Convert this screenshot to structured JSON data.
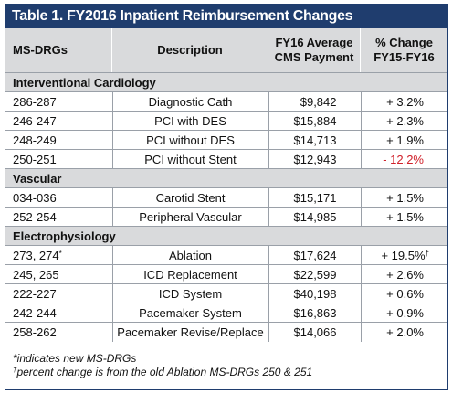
{
  "title": "Table 1. FY2016 Inpatient Reimbursement Changes",
  "headers": {
    "drg": "MS-DRGs",
    "description": "Description",
    "payment_line1": "FY16 Average",
    "payment_line2": "CMS Payment",
    "change_line1": "% Change",
    "change_line2": "FY15-FY16"
  },
  "sections": [
    {
      "name": "Interventional Cardiology",
      "rows": [
        {
          "drg": "286-287",
          "desc": "Diagnostic Cath",
          "payment": "$9,842",
          "change": "+ 3.2%"
        },
        {
          "drg": "246-247",
          "desc": "PCI with DES",
          "payment": "$15,884",
          "change": "+ 2.3%"
        },
        {
          "drg": "248-249",
          "desc": "PCI without DES",
          "payment": "$14,713",
          "change": "+ 1.9%"
        },
        {
          "drg": "250-251",
          "desc": "PCI without Stent",
          "payment": "$12,943",
          "change": "- 12.2%"
        }
      ]
    },
    {
      "name": "Vascular",
      "rows": [
        {
          "drg": "034-036",
          "desc": "Carotid Stent",
          "payment": "$15,171",
          "change": "+ 1.5%"
        },
        {
          "drg": "252-254",
          "desc": "Peripheral Vascular",
          "payment": "$14,985",
          "change": "+ 1.5%"
        }
      ]
    },
    {
      "name": "Electrophysiology",
      "rows": [
        {
          "drg": "273, 274",
          "drg_mark": "*",
          "desc": "Ablation",
          "payment": "$17,624",
          "change": "+ 19.5%",
          "change_mark": "†"
        },
        {
          "drg": "245, 265",
          "desc": "ICD Replacement",
          "payment": "$22,599",
          "change": "+ 2.6%"
        },
        {
          "drg": "222-227",
          "desc": "ICD System",
          "payment": "$40,198",
          "change": "+ 0.6%"
        },
        {
          "drg": "242-244",
          "desc": "Pacemaker System",
          "payment": "$16,863",
          "change": "+ 0.9%"
        },
        {
          "drg": "258-262",
          "desc": "Pacemaker Revise/Replace",
          "payment": "$14,066",
          "change": "+ 2.0%"
        }
      ]
    }
  ],
  "footnotes": {
    "note1": "*indicates new MS-DRGs",
    "note2_mark": "†",
    "note2": "percent change is from the old Ablation MS-DRGs 250 & 251"
  },
  "colors": {
    "title_bg": "#1f3d6e",
    "header_bg": "#d9dadc",
    "negative": "#d0202a"
  }
}
